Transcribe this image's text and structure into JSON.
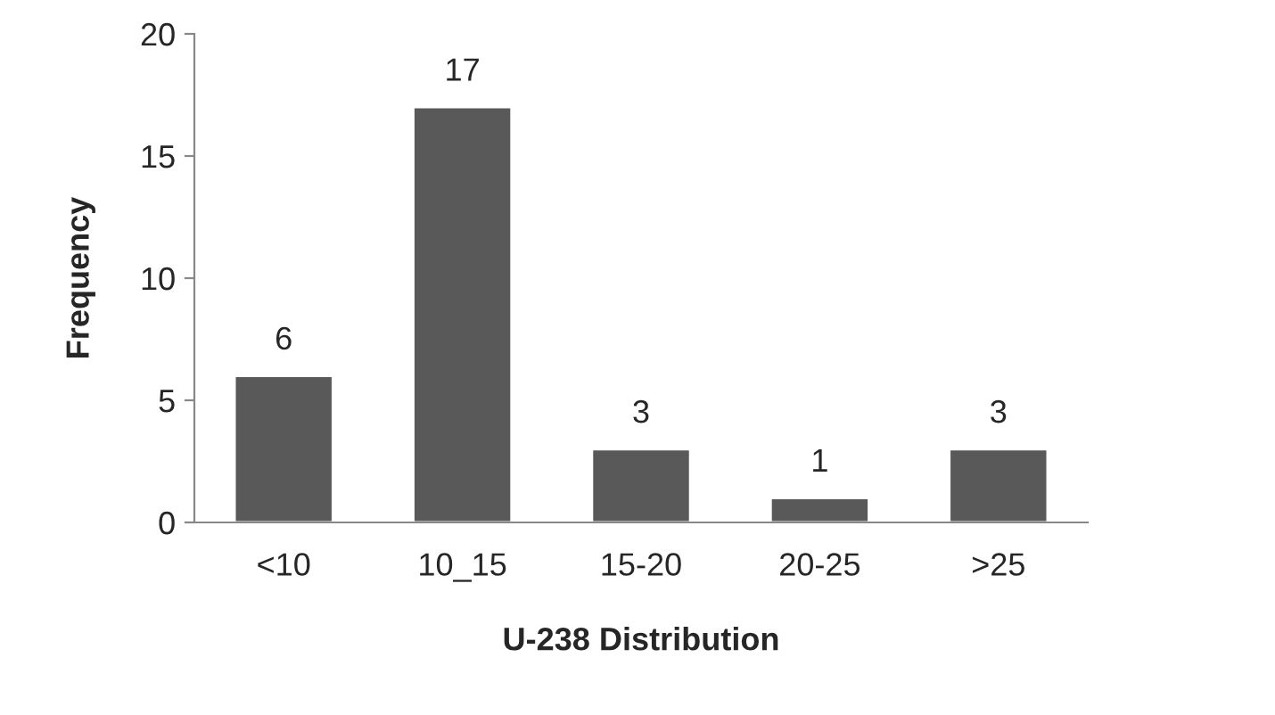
{
  "chart_data": {
    "type": "bar",
    "xlabel": "U-238 Distribution",
    "ylabel": "Frequency",
    "categories": [
      "<10",
      "10_15",
      "15-20",
      "20-25",
      ">25"
    ],
    "values": [
      6,
      17,
      3,
      1,
      3
    ],
    "color": "#595959",
    "ylim": [
      0,
      20
    ],
    "yticks": [
      0,
      5,
      10,
      15,
      20
    ],
    "grid": false,
    "data_labels": true
  }
}
